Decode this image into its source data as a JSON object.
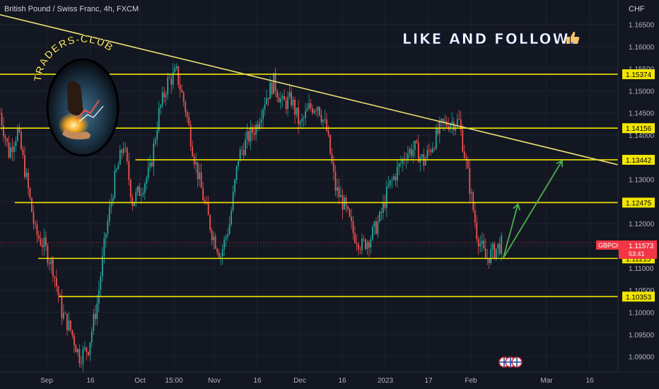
{
  "header": {
    "symbol_title": "British Pound / Swiss Franc, 4h, FXCM",
    "currency": "CHF"
  },
  "overlay": {
    "promo_text": "LIKE AND FOLLOW",
    "promo_icon": "thumbs-up-icon",
    "logo_text": "TRADERS-CLUB"
  },
  "price_axis": {
    "ticks": [
      "1.16500",
      "1.16000",
      "1.15500",
      "1.15000",
      "1.14500",
      "1.14000",
      "1.13500",
      "1.13000",
      "1.12500",
      "1.12000",
      "1.11500",
      "1.11000",
      "1.10500",
      "1.10000",
      "1.09500",
      "1.09000"
    ],
    "symbol_badge": "GBPCHF",
    "current_price": "1.11573",
    "countdown": "53:41"
  },
  "time_axis": {
    "labels": [
      "Sep",
      "16",
      "Oct",
      "15:00",
      "Nov",
      "16",
      "Dec",
      "16",
      "2023",
      "17",
      "Feb",
      "Mar",
      "16"
    ]
  },
  "colors": {
    "background": "#131722",
    "level_line": "#f2e600",
    "trendline": "#e8e070",
    "forecast_arrow": "#4caf50",
    "candle_up": "#26a69a",
    "candle_down": "#ef5350",
    "price_badge": "#f23645",
    "level_label_bg": "#f2e600"
  },
  "chart_data": {
    "type": "candlestick",
    "title": "British Pound / Swiss Franc, 4h, FXCM",
    "ylabel": "CHF",
    "ylim": [
      1.0865,
      1.1705
    ],
    "x_range": [
      "Aug 26",
      "Mar 24"
    ],
    "grid": true,
    "horizontal_levels": [
      {
        "label": "1.15374",
        "value": 1.15374,
        "from": "Aug 26"
      },
      {
        "label": "1.14156",
        "value": 1.14156,
        "from": "Aug 26"
      },
      {
        "label": "1.13442",
        "value": 1.13442,
        "from": "Oct 11"
      },
      {
        "label": "1.12475",
        "value": 1.12475,
        "from": "Aug 31"
      },
      {
        "label": "1.11215",
        "value": 1.11215,
        "from": "Sep 8"
      },
      {
        "label": "1.10353",
        "value": 1.10353,
        "from": "Sep 15"
      }
    ],
    "trendline": {
      "from": {
        "date": "Aug 24",
        "value": 1.1675
      },
      "to": {
        "date": "Mar 24",
        "value": 1.1333
      }
    },
    "forecast_path": [
      {
        "date": "Feb 13",
        "value": 1.1122
      },
      {
        "date": "Feb 18",
        "value": 1.1244
      },
      {
        "date": "Feb 13",
        "value": 1.1122
      },
      {
        "date": "Mar 5",
        "value": 1.1342
      }
    ],
    "price_series": {
      "dates": [
        "Aug 26",
        "Aug 29",
        "Sep 1",
        "Sep 4",
        "Sep 7",
        "Sep 10",
        "Sep 13",
        "Sep 16",
        "Sep 19",
        "Sep 22",
        "Sep 25",
        "Sep 28",
        "Oct 1",
        "Oct 4",
        "Oct 7",
        "Oct 10",
        "Oct 13",
        "Oct 16",
        "Oct 19",
        "Oct 22",
        "Oct 25",
        "Oct 28",
        "Oct 31",
        "Nov 3",
        "Nov 6",
        "Nov 9",
        "Nov 12",
        "Nov 15",
        "Nov 18",
        "Nov 21",
        "Nov 24",
        "Nov 27",
        "Nov 30",
        "Dec 3",
        "Dec 6",
        "Dec 9",
        "Dec 12",
        "Dec 15",
        "Dec 18",
        "Dec 21",
        "Dec 24",
        "Dec 27",
        "Dec 30",
        "Jan 2",
        "Jan 5",
        "Jan 8",
        "Jan 11",
        "Jan 14",
        "Jan 17",
        "Jan 20",
        "Jan 23",
        "Jan 26",
        "Jan 29",
        "Feb 1",
        "Feb 4",
        "Feb 7",
        "Feb 10",
        "Feb 13"
      ],
      "close": [
        1.145,
        1.136,
        1.141,
        1.13,
        1.118,
        1.115,
        1.11,
        1.1,
        1.096,
        1.09,
        1.092,
        1.102,
        1.118,
        1.13,
        1.138,
        1.125,
        1.128,
        1.132,
        1.145,
        1.152,
        1.154,
        1.146,
        1.135,
        1.126,
        1.118,
        1.113,
        1.12,
        1.135,
        1.139,
        1.142,
        1.148,
        1.152,
        1.147,
        1.148,
        1.142,
        1.146,
        1.147,
        1.141,
        1.128,
        1.124,
        1.118,
        1.115,
        1.117,
        1.121,
        1.128,
        1.132,
        1.136,
        1.137,
        1.134,
        1.138,
        1.142,
        1.143,
        1.143,
        1.131,
        1.118,
        1.112,
        1.114,
        1.1157
      ]
    },
    "current_price": 1.11573
  }
}
